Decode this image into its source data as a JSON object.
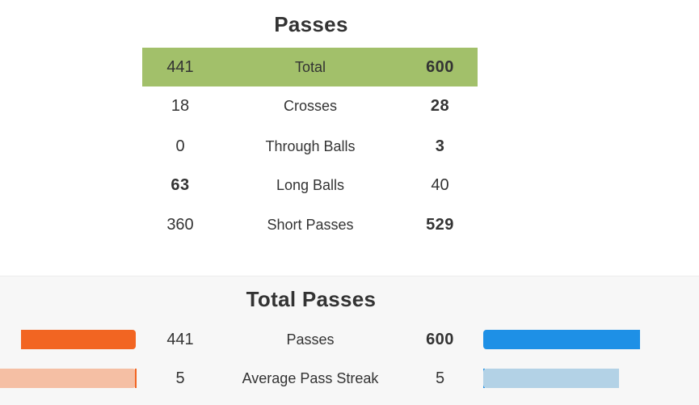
{
  "passes": {
    "title": "Passes",
    "rows": [
      {
        "home": "441",
        "label": "Total",
        "away": "600"
      },
      {
        "home": "18",
        "label": "Crosses",
        "away": "28"
      },
      {
        "home": "0",
        "label": "Through Balls",
        "away": "3"
      },
      {
        "home": "63",
        "label": "Long Balls",
        "away": "40"
      },
      {
        "home": "360",
        "label": "Short Passes",
        "away": "529"
      }
    ]
  },
  "total_passes": {
    "title": "Total Passes",
    "rows": [
      {
        "home": "441",
        "label": "Passes",
        "away": "600",
        "home_share": 0.424,
        "away_share": 0.576
      },
      {
        "home": "5",
        "label": "Average Pass Streak",
        "away": "5",
        "home_share": 0.5,
        "away_share": 0.5
      }
    ]
  },
  "colors": {
    "highlight_row": "#a2c06a",
    "home_bar": "#f26522",
    "home_bar_light": "#f5bfa4",
    "away_bar": "#1e90e6",
    "away_bar_light": "#b3d2e6",
    "text": "#333333",
    "panel_background": "#f7f7f7"
  }
}
